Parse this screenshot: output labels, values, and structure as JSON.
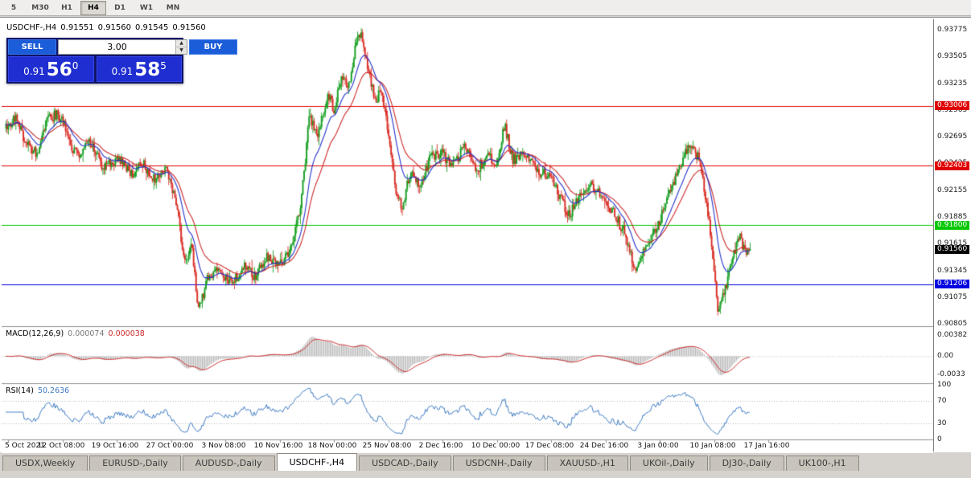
{
  "toolbar": {
    "periods": [
      "5",
      "M30",
      "H1",
      "H4",
      "D1",
      "W1",
      "MN"
    ],
    "active_period": "H4"
  },
  "chart_header": {
    "symbol": "USDCHF-,H4",
    "open": "0.91551",
    "high": "0.91560",
    "low": "0.91545",
    "close": "0.91560"
  },
  "trade_panel": {
    "sell_label": "SELL",
    "buy_label": "BUY",
    "volume": "3.00",
    "sell_price_main": "0.91",
    "sell_price_big": "56",
    "sell_price_sup": "0",
    "buy_price_main": "0.91",
    "buy_price_big": "58",
    "buy_price_sup": "5"
  },
  "chart_data": {
    "type": "candlestick",
    "symbol": "USDCHF",
    "timeframe": "H4",
    "last_price": 0.9156,
    "current_bar": {
      "open": 0.91551,
      "high": 0.9156,
      "low": 0.91545,
      "close": 0.9156
    },
    "y_axis": {
      "range_min": 0.9079,
      "range_max": 0.9388,
      "ticks": [
        0.93775,
        0.93505,
        0.93235,
        0.92965,
        0.92695,
        0.92425,
        0.92155,
        0.91885,
        0.91615,
        0.91345,
        0.91075,
        0.90805
      ]
    },
    "x_axis": {
      "labels": [
        "5 Oct 2021",
        "12 Oct 08:00",
        "19 Oct 16:00",
        "27 Oct 00:00",
        "3 Nov 08:00",
        "10 Nov 16:00",
        "18 Nov 00:00",
        "25 Nov 08:00",
        "2 Dec 16:00",
        "10 Dec 00:00",
        "17 Dec 08:00",
        "24 Dec 16:00",
        "3 Jan 00:00",
        "10 Jan 08:00",
        "17 Jan 16:00"
      ]
    },
    "horizontal_levels": [
      {
        "price": 0.93006,
        "color": "#e00000"
      },
      {
        "price": 0.92403,
        "color": "#e00000"
      },
      {
        "price": 0.918,
        "color": "#00c800"
      },
      {
        "price": 0.91206,
        "color": "#0000e0"
      }
    ],
    "last_price_box_color": "#000000",
    "candles": {
      "count": 600,
      "up_color": "#16a022",
      "down_color": "#d92f27",
      "price_path": [
        [
          0.0,
          0.9278
        ],
        [
          0.012,
          0.929
        ],
        [
          0.027,
          0.9262
        ],
        [
          0.042,
          0.9252
        ],
        [
          0.054,
          0.9285
        ],
        [
          0.068,
          0.9292
        ],
        [
          0.076,
          0.9286
        ],
        [
          0.089,
          0.9258
        ],
        [
          0.097,
          0.9252
        ],
        [
          0.114,
          0.9264
        ],
        [
          0.13,
          0.924
        ],
        [
          0.152,
          0.9248
        ],
        [
          0.168,
          0.9232
        ],
        [
          0.184,
          0.9242
        ],
        [
          0.2,
          0.9226
        ],
        [
          0.216,
          0.9236
        ],
        [
          0.228,
          0.9204
        ],
        [
          0.241,
          0.914
        ],
        [
          0.249,
          0.9164
        ],
        [
          0.259,
          0.9092
        ],
        [
          0.27,
          0.9125
        ],
        [
          0.286,
          0.9134
        ],
        [
          0.305,
          0.9122
        ],
        [
          0.319,
          0.914
        ],
        [
          0.335,
          0.9128
        ],
        [
          0.351,
          0.9148
        ],
        [
          0.369,
          0.914
        ],
        [
          0.384,
          0.9158
        ],
        [
          0.397,
          0.9205
        ],
        [
          0.408,
          0.9292
        ],
        [
          0.418,
          0.927
        ],
        [
          0.432,
          0.9312
        ],
        [
          0.441,
          0.9296
        ],
        [
          0.451,
          0.933
        ],
        [
          0.462,
          0.9318
        ],
        [
          0.47,
          0.9366
        ],
        [
          0.478,
          0.9374
        ],
        [
          0.486,
          0.934
        ],
        [
          0.497,
          0.9306
        ],
        [
          0.505,
          0.932
        ],
        [
          0.514,
          0.927
        ],
        [
          0.524,
          0.9216
        ],
        [
          0.532,
          0.9198
        ],
        [
          0.544,
          0.9234
        ],
        [
          0.557,
          0.9222
        ],
        [
          0.57,
          0.9248
        ],
        [
          0.587,
          0.9252
        ],
        [
          0.6,
          0.9238
        ],
        [
          0.616,
          0.926
        ],
        [
          0.632,
          0.9235
        ],
        [
          0.649,
          0.9252
        ],
        [
          0.659,
          0.924
        ],
        [
          0.67,
          0.9282
        ],
        [
          0.681,
          0.9246
        ],
        [
          0.697,
          0.9252
        ],
        [
          0.714,
          0.9235
        ],
        [
          0.733,
          0.9228
        ],
        [
          0.746,
          0.9206
        ],
        [
          0.757,
          0.919
        ],
        [
          0.771,
          0.921
        ],
        [
          0.787,
          0.9222
        ],
        [
          0.805,
          0.9206
        ],
        [
          0.818,
          0.919
        ],
        [
          0.832,
          0.9172
        ],
        [
          0.846,
          0.913
        ],
        [
          0.857,
          0.9152
        ],
        [
          0.87,
          0.9172
        ],
        [
          0.879,
          0.9186
        ],
        [
          0.894,
          0.9216
        ],
        [
          0.908,
          0.9242
        ],
        [
          0.919,
          0.9264
        ],
        [
          0.93,
          0.9248
        ],
        [
          0.941,
          0.9206
        ],
        [
          0.948,
          0.916
        ],
        [
          0.957,
          0.9095
        ],
        [
          0.965,
          0.9112
        ],
        [
          0.976,
          0.9146
        ],
        [
          0.985,
          0.917
        ],
        [
          0.993,
          0.9152
        ],
        [
          1.0,
          0.9156
        ]
      ]
    },
    "moving_averages": [
      {
        "period": 16,
        "color": "#2433cc"
      },
      {
        "period": 30,
        "color": "#cc2a2a"
      }
    ],
    "indicators": [
      {
        "type": "macd",
        "label": "MACD(12,26,9)",
        "main_value": 7.4e-05,
        "signal_value": 3.8e-05,
        "axis_labels": [
          "0.00382",
          "0.00",
          "-0.0033"
        ],
        "histogram_color": "#b2b2b2",
        "signal_color": "#cc2a2a"
      },
      {
        "type": "rsi",
        "label": "RSI(14)",
        "value": 50.2636,
        "axis_values": [
          100,
          70,
          30,
          0
        ],
        "level_lines": [
          70,
          30
        ],
        "line_color": "#3f7cc4"
      }
    ]
  },
  "window_tabs": {
    "items": [
      "USDX,Weekly",
      "EURUSD-,Daily",
      "AUDUSD-,Daily",
      "USDCHF-,H4",
      "USDCAD-,Daily",
      "USDCNH-,Daily",
      "XAUUSD-,H1",
      "UKOil-,Daily",
      "DJ30-,Daily",
      "UK100-,H1"
    ],
    "active": "USDCHF-,H4"
  }
}
